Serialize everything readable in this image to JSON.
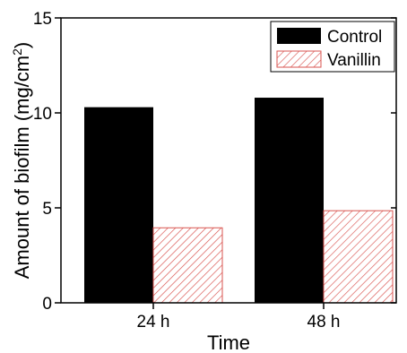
{
  "chart_data": {
    "type": "bar",
    "categories": [
      "24 h",
      "48 h"
    ],
    "series": [
      {
        "name": "Control",
        "values": [
          10.3,
          10.8
        ],
        "color": "#000000",
        "pattern": "solid"
      },
      {
        "name": "Vanillin",
        "values": [
          3.95,
          4.85
        ],
        "color": "#d9534f",
        "pattern": "hatched"
      }
    ],
    "xlabel": "Time",
    "ylabel_main": "Amount of biofilm (mg/cm",
    "ylabel_sup": "2",
    "ylabel_close": ")",
    "ylim": [
      0,
      15
    ],
    "yticks": [
      0,
      5,
      10,
      15
    ],
    "grid": false,
    "legend_position": "top-right"
  }
}
